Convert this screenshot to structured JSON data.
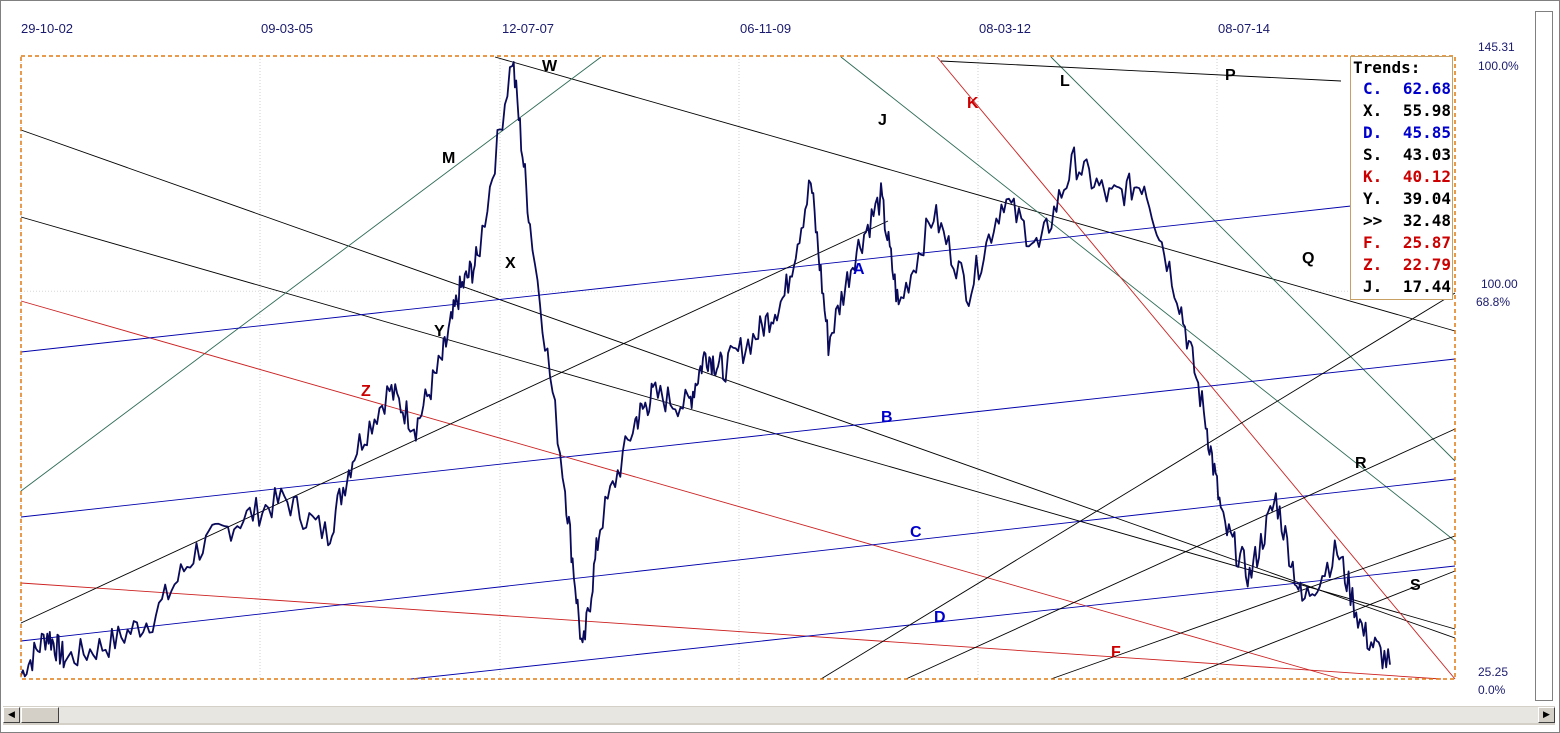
{
  "chart_data": {
    "type": "line",
    "x_dates": [
      "29-10-02",
      "09-03-05",
      "12-07-07",
      "06-11-09",
      "08-03-12",
      "08-07-14"
    ],
    "right_axis": {
      "top_value": "145.31",
      "top_pct": "100.0%",
      "mid_value": "100.00",
      "mid_pct": "68.8%",
      "bottom_value": "25.25",
      "bottom_pct": "0.0%"
    },
    "ylim": [
      25.25,
      145.31
    ],
    "grid": true,
    "legend": {
      "placement": "top-right",
      "title": "Trends:",
      "items": [
        {
          "name": "C.",
          "value": "62.68",
          "color": "#0000cc"
        },
        {
          "name": "X.",
          "value": "55.98",
          "color": "#000000"
        },
        {
          "name": "D.",
          "value": "45.85",
          "color": "#0000cc"
        },
        {
          "name": "S.",
          "value": "43.03",
          "color": "#000000"
        },
        {
          "name": "K.",
          "value": "40.12",
          "color": "#cc0000"
        },
        {
          "name": "Y.",
          "value": "39.04",
          "color": "#000000"
        },
        {
          "name": ">>",
          "value": "32.48",
          "color": "#000000"
        },
        {
          "name": "F.",
          "value": "25.87",
          "color": "#cc0000"
        },
        {
          "name": "Z.",
          "value": "22.79",
          "color": "#cc0000"
        },
        {
          "name": "J.",
          "value": "17.44",
          "color": "#000000"
        }
      ]
    },
    "price_series_color": "#0a0a5a",
    "price_anchors": [
      [
        0,
        26
      ],
      [
        0.03,
        34
      ],
      [
        0.05,
        29
      ],
      [
        0.1,
        32
      ],
      [
        0.15,
        37
      ],
      [
        0.2,
        50
      ],
      [
        0.25,
        56
      ],
      [
        0.3,
        60
      ],
      [
        0.35,
        53
      ],
      [
        0.38,
        69
      ],
      [
        0.42,
        81
      ],
      [
        0.45,
        74
      ],
      [
        0.48,
        87
      ],
      [
        0.5,
        100
      ],
      [
        0.52,
        106
      ],
      [
        0.56,
        145
      ],
      [
        0.58,
        113
      ],
      [
        0.62,
        62
      ],
      [
        0.64,
        30
      ],
      [
        0.66,
        55
      ],
      [
        0.7,
        75
      ],
      [
        0.72,
        80
      ],
      [
        0.76,
        78
      ],
      [
        0.78,
        88
      ],
      [
        0.8,
        85
      ],
      [
        0.84,
        92
      ],
      [
        0.87,
        99
      ],
      [
        0.9,
        121
      ],
      [
        0.92,
        90
      ],
      [
        0.95,
        107
      ],
      [
        0.98,
        118
      ],
      [
        1.0,
        97
      ],
      [
        1.04,
        115
      ],
      [
        1.08,
        100
      ],
      [
        1.12,
        118
      ],
      [
        1.16,
        108
      ],
      [
        1.2,
        125
      ],
      [
        1.24,
        118
      ],
      [
        1.28,
        121
      ],
      [
        1.32,
        98
      ],
      [
        1.35,
        75
      ],
      [
        1.37,
        55
      ],
      [
        1.4,
        45
      ],
      [
        1.43,
        60
      ],
      [
        1.46,
        40
      ],
      [
        1.5,
        50
      ],
      [
        1.53,
        34
      ],
      [
        1.56,
        28
      ]
    ],
    "trendline_labels": [
      {
        "label": "W",
        "color": "#000000"
      },
      {
        "label": "M",
        "color": "#000000"
      },
      {
        "label": "J",
        "color": "#000000"
      },
      {
        "label": "K",
        "color": "#cc0000"
      },
      {
        "label": "L",
        "color": "#000000"
      },
      {
        "label": "P",
        "color": "#000000"
      },
      {
        "label": "X",
        "color": "#000000"
      },
      {
        "label": "Y",
        "color": "#000000"
      },
      {
        "label": "Z",
        "color": "#cc0000"
      },
      {
        "label": "A",
        "color": "#0000cc"
      },
      {
        "label": "B",
        "color": "#0000cc"
      },
      {
        "label": "C",
        "color": "#0000cc"
      },
      {
        "label": "D",
        "color": "#0000cc"
      },
      {
        "label": "F",
        "color": "#cc0000"
      },
      {
        "label": "Q",
        "color": "#000000"
      },
      {
        "label": "R",
        "color": "#000000"
      },
      {
        "label": "S",
        "color": "#000000"
      }
    ]
  },
  "colors": {
    "plot_border": "#e07a10",
    "grid": "#b0b0b0",
    "blue_lines": "#0000aa",
    "red_lines": "#cc2020",
    "black_lines": "#000000",
    "green_lines": "#2e6b55"
  },
  "scrollbar": {
    "left_icon": "arrow-left-icon",
    "right_icon": "arrow-right-icon",
    "left_glyph": "◀",
    "right_glyph": "▶"
  }
}
